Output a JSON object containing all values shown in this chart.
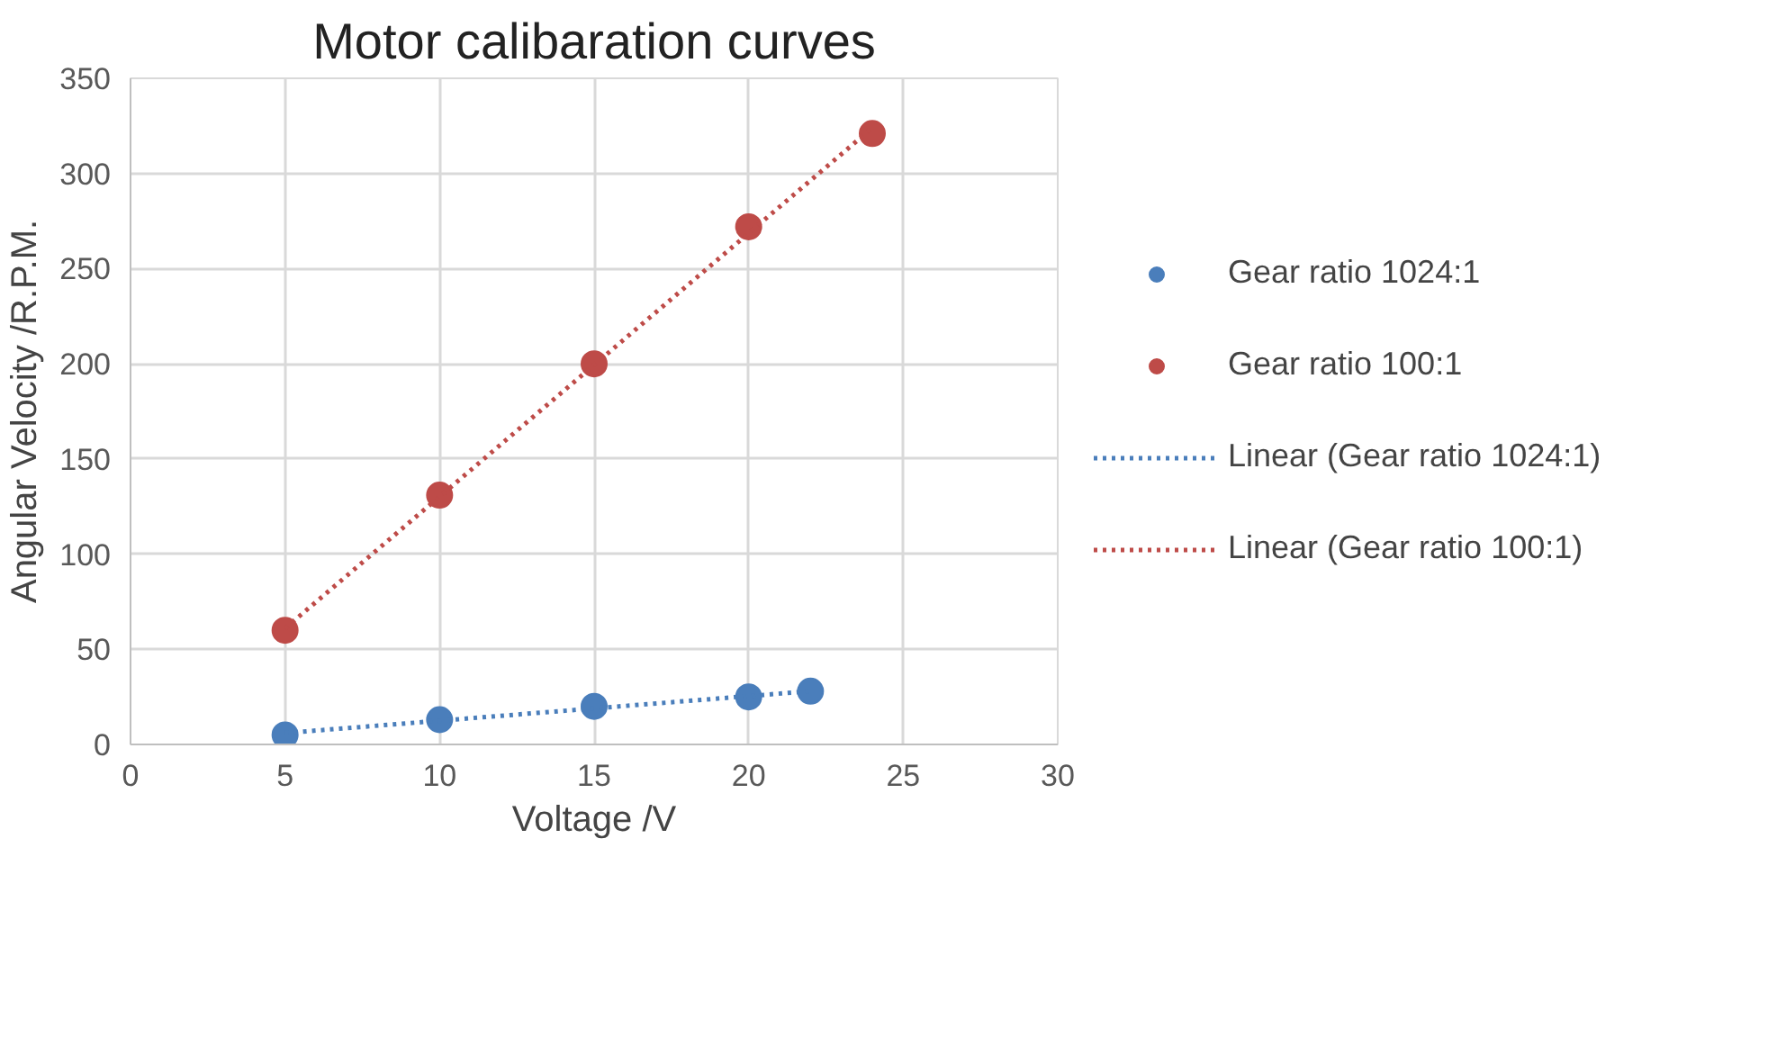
{
  "chart_data": {
    "type": "scatter",
    "title": "Motor calibaration curves",
    "xlabel": "Voltage /V",
    "ylabel": "Angular Velocity /R.P.M.",
    "xlim": [
      0,
      30
    ],
    "xticks": [
      0,
      5,
      10,
      15,
      20,
      25,
      30
    ],
    "ylim": [
      0,
      350
    ],
    "yticks": [
      0,
      50,
      100,
      150,
      200,
      250,
      300,
      350
    ],
    "grid": true,
    "legend": "right",
    "marker": "circle",
    "series": [
      {
        "name": "Gear ratio 1024:1",
        "color": "#4a7ebb",
        "x": [
          5,
          10,
          15,
          20,
          22
        ],
        "values": [
          5,
          13,
          20,
          25,
          28
        ]
      },
      {
        "name": "Gear ratio 100:1",
        "color": "#be4b48",
        "x": [
          5,
          10,
          15,
          20,
          24
        ],
        "values": [
          60,
          131,
          200,
          272,
          321
        ]
      },
      {
        "name": "Linear (Gear ratio 1024:1)",
        "type": "line",
        "line_style": "dotted",
        "marker": "none",
        "color": "#4a7ebb",
        "x": [
          5,
          22
        ],
        "values": [
          6,
          28
        ]
      },
      {
        "name": "Linear (Gear ratio 100:1)",
        "type": "line",
        "line_style": "dotted",
        "marker": "none",
        "color": "#be4b48",
        "x": [
          5,
          24
        ],
        "values": [
          61,
          324
        ]
      }
    ]
  }
}
